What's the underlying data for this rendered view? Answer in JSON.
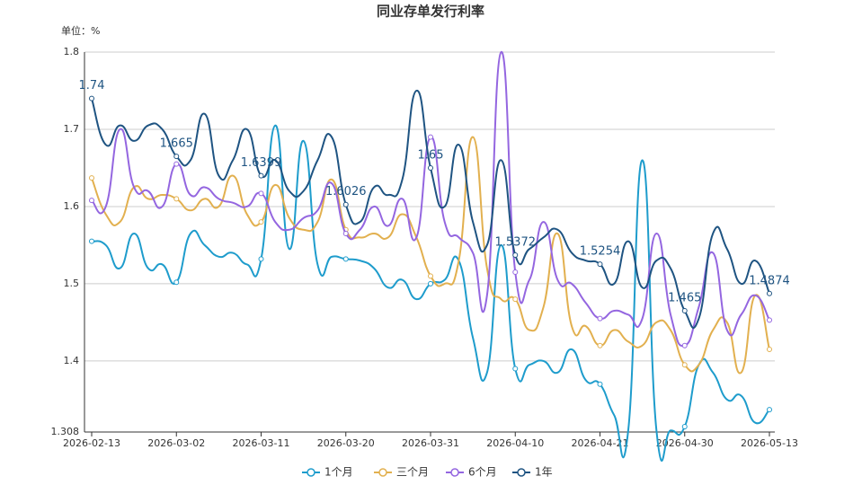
{
  "chart_data": {
    "type": "line",
    "title": "同业存单发行利率",
    "y_label": "单位：%",
    "categories": [
      "2026-02-13",
      null,
      null,
      null,
      null,
      null,
      "2026-03-02",
      null,
      null,
      null,
      null,
      null,
      "2026-03-11",
      null,
      null,
      null,
      null,
      null,
      "2026-03-20",
      null,
      null,
      null,
      null,
      null,
      "2026-03-31",
      null,
      null,
      null,
      null,
      null,
      "2026-04-10",
      null,
      null,
      null,
      null,
      null,
      "2026-04-21",
      null,
      null,
      null,
      null,
      null,
      "2026-04-30",
      null,
      null,
      null,
      null,
      null,
      "2026-05-13"
    ],
    "ylim": [
      1.308,
      1.8
    ],
    "yticks": [
      1.308,
      1.4,
      1.5,
      1.6,
      1.7,
      1.8
    ],
    "grid": true,
    "series": [
      {
        "name": "1个月",
        "color": "#1e9ccc",
        "values": [
          1.555,
          1.55,
          1.52,
          1.565,
          1.52,
          1.525,
          1.502,
          1.565,
          1.55,
          1.535,
          1.54,
          1.525,
          1.532,
          1.705,
          1.545,
          1.685,
          1.525,
          1.535,
          1.532,
          1.53,
          1.52,
          1.495,
          1.505,
          1.48,
          1.5,
          1.505,
          1.53,
          1.43,
          1.385,
          1.55,
          1.39,
          1.395,
          1.4,
          1.385,
          1.415,
          1.375,
          1.37,
          1.33,
          1.31,
          1.66,
          1.31,
          1.31,
          1.315,
          1.395,
          1.385,
          1.35,
          1.355,
          1.32,
          1.337
        ]
      },
      {
        "name": "三个月",
        "color": "#e2b04f",
        "values": [
          1.637,
          1.59,
          1.58,
          1.625,
          1.61,
          1.615,
          1.61,
          1.595,
          1.61,
          1.6,
          1.64,
          1.59,
          1.58,
          1.628,
          1.585,
          1.57,
          1.58,
          1.635,
          1.57,
          1.56,
          1.565,
          1.56,
          1.59,
          1.56,
          1.51,
          1.5,
          1.53,
          1.69,
          1.52,
          1.48,
          1.48,
          1.44,
          1.47,
          1.565,
          1.445,
          1.445,
          1.42,
          1.44,
          1.425,
          1.42,
          1.45,
          1.44,
          1.395,
          1.395,
          1.44,
          1.45,
          1.385,
          1.485,
          1.415
        ]
      },
      {
        "name": "6个月",
        "color": "#9466e0",
        "values": [
          1.608,
          1.6,
          1.7,
          1.625,
          1.62,
          1.6,
          1.655,
          1.615,
          1.625,
          1.61,
          1.605,
          1.6,
          1.617,
          1.58,
          1.57,
          1.585,
          1.595,
          1.63,
          1.565,
          1.57,
          1.6,
          1.575,
          1.61,
          1.56,
          1.69,
          1.58,
          1.56,
          1.54,
          1.485,
          1.8,
          1.515,
          1.505,
          1.58,
          1.505,
          1.5,
          1.475,
          1.455,
          1.465,
          1.46,
          1.455,
          1.565,
          1.46,
          1.42,
          1.47,
          1.54,
          1.44,
          1.46,
          1.485,
          1.453
        ]
      },
      {
        "name": "1年",
        "color": "#1f5482",
        "values": [
          1.74,
          1.68,
          1.705,
          1.685,
          1.705,
          1.7,
          1.665,
          1.66,
          1.72,
          1.64,
          1.66,
          1.7,
          1.6399,
          1.66,
          1.62,
          1.62,
          1.66,
          1.69,
          1.6026,
          1.58,
          1.625,
          1.615,
          1.635,
          1.75,
          1.65,
          1.6,
          1.68,
          1.58,
          1.55,
          1.66,
          1.5372,
          1.545,
          1.56,
          1.57,
          1.54,
          1.53,
          1.5254,
          1.5,
          1.555,
          1.495,
          1.53,
          1.52,
          1.465,
          1.455,
          1.565,
          1.545,
          1.5,
          1.53,
          1.4874
        ]
      }
    ]
  }
}
